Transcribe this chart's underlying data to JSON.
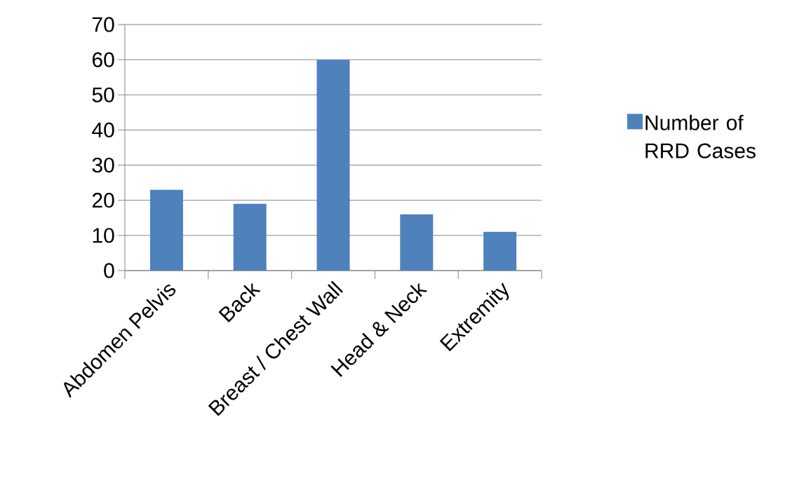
{
  "chart_data": {
    "type": "bar",
    "categories": [
      "Abdomen Pelvis",
      "Back",
      "Breast / Chest Wall",
      "Head & Neck",
      "Extremity"
    ],
    "series": [
      {
        "name": "Number of RRD Cases",
        "color": "#4f81bd",
        "values": [
          23,
          19,
          60,
          16,
          11
        ]
      }
    ],
    "ylim": [
      0,
      70
    ],
    "yticks": [
      0,
      10,
      20,
      30,
      40,
      50,
      60,
      70
    ],
    "grid": "y",
    "legend": "right"
  }
}
